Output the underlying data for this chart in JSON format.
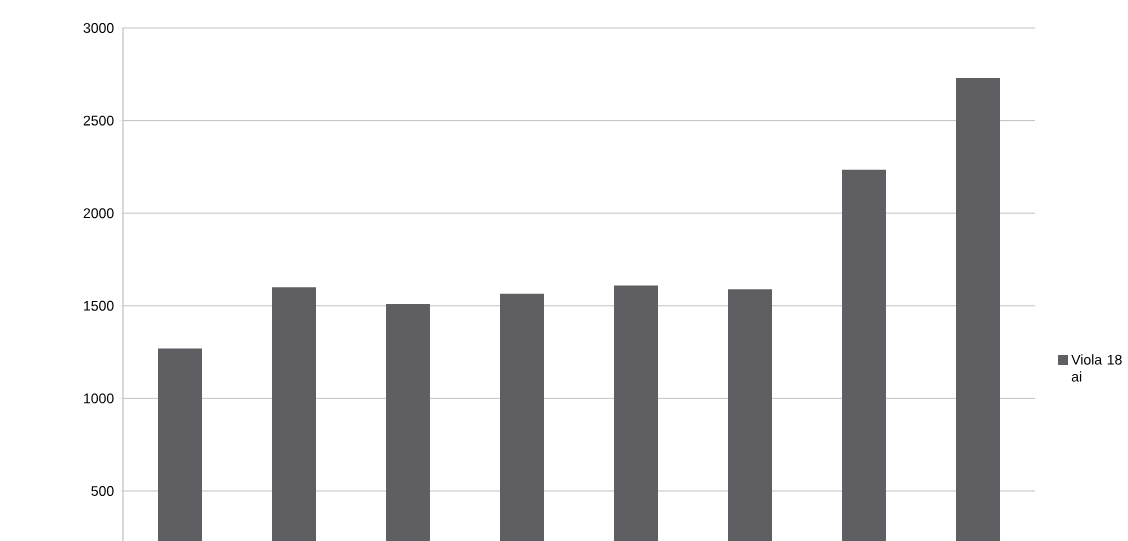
{
  "chart_data": {
    "type": "bar",
    "categories": [
      null,
      null,
      null,
      null,
      null,
      null,
      null,
      null
    ],
    "series": [
      {
        "name": "Viola 18 ai",
        "color": "#5f5f63",
        "values": [
          1270,
          1600,
          1510,
          1565,
          1610,
          1590,
          2235,
          2730
        ]
      }
    ],
    "ylim": [
      230,
      3000
    ],
    "yticks": [
      500,
      1000,
      1500,
      2000,
      2500,
      3000
    ],
    "grid": "y",
    "legend": "right"
  }
}
